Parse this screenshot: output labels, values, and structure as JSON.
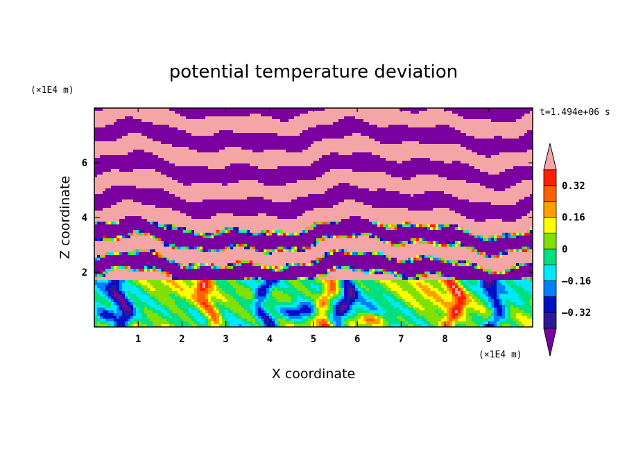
{
  "chart_data": {
    "type": "heatmap",
    "title": "potential temperature deviation",
    "xlabel": "X coordinate",
    "ylabel": "Z coordinate",
    "x_unit": "(×1E4 m)",
    "y_unit": "(×1E4 m)",
    "time_label": "t=1.494e+06 s",
    "xlim": [
      0,
      10
    ],
    "ylim": [
      0,
      8
    ],
    "x_ticks": [
      1,
      2,
      3,
      4,
      5,
      6,
      7,
      8,
      9
    ],
    "y_ticks": [
      2,
      4,
      6
    ],
    "colorbar": {
      "levels": [
        -0.4,
        -0.32,
        -0.24,
        -0.16,
        -0.08,
        0,
        0.08,
        0.16,
        0.24,
        0.32,
        0.4
      ],
      "tick_labels": [
        {
          "value": 0.32,
          "label": "0.32"
        },
        {
          "value": 0.16,
          "label": "0.16"
        },
        {
          "value": 0,
          "label": "0"
        },
        {
          "value": -0.16,
          "label": "–0.16"
        },
        {
          "value": -0.32,
          "label": "–0.32"
        }
      ],
      "colors_low_to_high": [
        "#7a00a0",
        "#2c1899",
        "#0010c8",
        "#0080ff",
        "#00e8ff",
        "#00e080",
        "#80e000",
        "#ffff00",
        "#ffa000",
        "#ff6000",
        "#ff2000",
        "#f4a6a6"
      ],
      "extend": "both"
    },
    "field_description_regions": [
      {
        "zone": "upper layers",
        "z_range": [
          2,
          8
        ],
        "values": "alternating bands near -0.4 and +0.4"
      },
      {
        "zone": "boundary layer",
        "z_range": [
          0,
          1.7
        ],
        "values": "mostly between -0.16 and 0.16 with convective plumes"
      }
    ]
  }
}
